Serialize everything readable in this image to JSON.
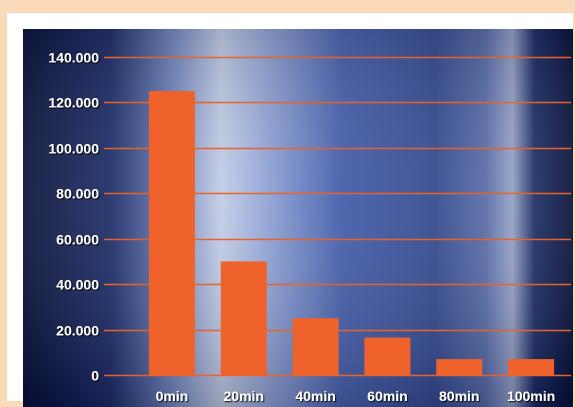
{
  "colors": {
    "page_background": "#f9d9b8",
    "bar": "#f0622b",
    "gridline": "#e8622c",
    "label_text": "#ffffff",
    "photo_dark": "#0d1b4a",
    "photo_mid": "#2f4a9a",
    "photo_light": "#a8b8de"
  },
  "chart_data": {
    "type": "bar",
    "title": "",
    "xlabel": "",
    "ylabel": "",
    "categories": [
      "0min",
      "20min",
      "40min",
      "60min",
      "80min",
      "100min"
    ],
    "values": [
      125000,
      50000,
      25000,
      16500,
      7000,
      7000
    ],
    "ylim": [
      0,
      145000
    ],
    "yticks": [
      0,
      20000,
      40000,
      60000,
      80000,
      100000,
      120000,
      140000
    ],
    "ytick_labels": [
      "0",
      "20.000",
      "40.000",
      "60.000",
      "80.000",
      "100.000",
      "120.000",
      "140.000"
    ],
    "grid": true,
    "legend": "none",
    "background": "blue electron-microscope photograph"
  }
}
